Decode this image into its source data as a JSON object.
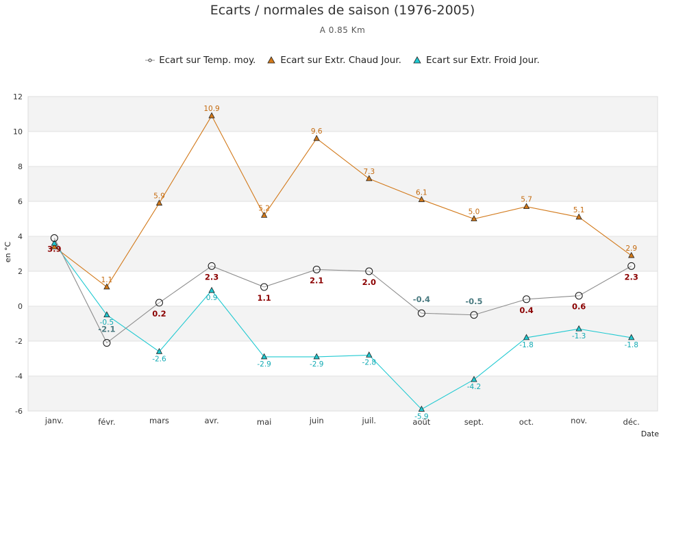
{
  "chart_data": {
    "type": "line",
    "title": "Ecarts / normales de saison (1976-2005)",
    "subtitle": "A 0.85 Km",
    "xlabel": "Date",
    "ylabel": "en °C",
    "ylim": [
      -6,
      12
    ],
    "yticks": [
      -6,
      -4,
      -2,
      0,
      2,
      4,
      6,
      8,
      10,
      12
    ],
    "categories": [
      "janv.",
      "févr.",
      "mars",
      "avr.",
      "mai",
      "juin",
      "juil.",
      "août",
      "sept.",
      "oct.",
      "nov.",
      "déc."
    ],
    "legend_position": "top-center",
    "grid": "alternating horizontal bands",
    "series": [
      {
        "name": "Ecart sur Temp. moy.",
        "marker": "circle",
        "color": "#8c8c8c",
        "label_color_positive": "#8b0000",
        "label_color_negative": "#4a7a80",
        "values": [
          3.9,
          -2.1,
          0.2,
          2.3,
          1.1,
          2.1,
          2.0,
          -0.4,
          -0.5,
          0.4,
          0.6,
          2.3
        ],
        "labels": [
          "3.9",
          "-2.1",
          "0.2",
          "2.3",
          "1.1",
          "2.1",
          "2.0",
          "-0.4",
          "-0.5",
          "0.4",
          "0.6",
          "2.3"
        ]
      },
      {
        "name": "Ecart sur Extr. Chaud Jour.",
        "marker": "triangle",
        "color": "#d2791a",
        "label_color": "#c46a0e",
        "values": [
          3.4,
          1.1,
          5.9,
          10.9,
          5.2,
          9.6,
          7.3,
          6.1,
          5.0,
          5.7,
          5.1,
          2.9
        ],
        "labels": [
          "",
          "1.1",
          "5.9",
          "10.9",
          "5.2",
          "9.6",
          "7.3",
          "6.1",
          "5.0",
          "5.7",
          "5.1",
          "2.9"
        ]
      },
      {
        "name": "Ecart sur Extr. Froid Jour.",
        "marker": "triangle",
        "color": "#1fc9d1",
        "label_color": "#11aab3",
        "values": [
          3.6,
          -0.5,
          -2.6,
          0.9,
          -2.9,
          -2.9,
          -2.8,
          -5.9,
          -4.2,
          -1.8,
          -1.3,
          -1.8
        ],
        "labels": [
          "",
          "-0.5",
          "-2.6",
          "0.9",
          "-2.9",
          "-2.9",
          "-2.8",
          "-5.9",
          "-4.2",
          "-1.8",
          "-1.3",
          "-1.8"
        ]
      }
    ]
  }
}
